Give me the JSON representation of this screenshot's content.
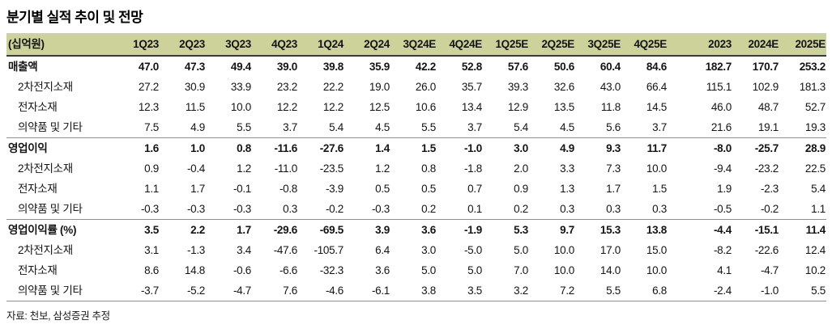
{
  "title": "분기별 실적 추이 및 전망",
  "footer": "자료: 천보, 삼성증권 추정",
  "colors": {
    "header_bg": "#ccd29a",
    "header_border": "#3a3a3a",
    "section_line": "#909090"
  },
  "table": {
    "unit_label": "(십억원)",
    "columns": [
      "1Q23",
      "2Q23",
      "3Q23",
      "4Q23",
      "1Q24",
      "2Q24",
      "3Q24E",
      "4Q24E",
      "1Q25E",
      "2Q25E",
      "3Q25E",
      "4Q25E",
      "2023",
      "2024E",
      "2025E"
    ],
    "gap_after_column_index": 12,
    "rows": [
      {
        "label": "매출액",
        "bold": true,
        "indent": false,
        "section_start": false,
        "values": [
          "47.0",
          "47.3",
          "49.4",
          "39.0",
          "39.8",
          "35.9",
          "42.2",
          "52.8",
          "57.6",
          "50.6",
          "60.4",
          "84.6",
          "182.7",
          "170.7",
          "253.2"
        ]
      },
      {
        "label": "2차전지소재",
        "bold": false,
        "indent": true,
        "section_start": false,
        "values": [
          "27.2",
          "30.9",
          "33.9",
          "23.2",
          "22.2",
          "19.0",
          "26.0",
          "35.7",
          "39.3",
          "32.6",
          "43.0",
          "66.4",
          "115.1",
          "102.9",
          "181.3"
        ]
      },
      {
        "label": "전자소재",
        "bold": false,
        "indent": true,
        "section_start": false,
        "values": [
          "12.3",
          "11.5",
          "10.0",
          "12.2",
          "12.2",
          "12.5",
          "10.6",
          "13.4",
          "12.9",
          "13.5",
          "11.8",
          "14.5",
          "46.0",
          "48.7",
          "52.7"
        ]
      },
      {
        "label": "의약품 및 기타",
        "bold": false,
        "indent": true,
        "section_start": false,
        "values": [
          "7.5",
          "4.9",
          "5.5",
          "3.7",
          "5.4",
          "4.5",
          "5.5",
          "3.7",
          "5.4",
          "4.5",
          "5.6",
          "3.7",
          "21.6",
          "19.1",
          "19.3"
        ]
      },
      {
        "label": "영업이익",
        "bold": true,
        "indent": false,
        "section_start": true,
        "values": [
          "1.6",
          "1.0",
          "0.8",
          "-11.6",
          "-27.6",
          "1.4",
          "1.5",
          "-1.0",
          "3.0",
          "4.9",
          "9.3",
          "11.7",
          "-8.0",
          "-25.7",
          "28.9"
        ]
      },
      {
        "label": "2차전지소재",
        "bold": false,
        "indent": true,
        "section_start": false,
        "values": [
          "0.9",
          "-0.4",
          "1.2",
          "-11.0",
          "-23.5",
          "1.2",
          "0.8",
          "-1.8",
          "2.0",
          "3.3",
          "7.3",
          "10.0",
          "-9.4",
          "-23.2",
          "22.5"
        ]
      },
      {
        "label": "전자소재",
        "bold": false,
        "indent": true,
        "section_start": false,
        "values": [
          "1.1",
          "1.7",
          "-0.1",
          "-0.8",
          "-3.9",
          "0.5",
          "0.5",
          "0.7",
          "0.9",
          "1.3",
          "1.7",
          "1.5",
          "1.9",
          "-2.3",
          "5.4"
        ]
      },
      {
        "label": "의약품 및 기타",
        "bold": false,
        "indent": true,
        "section_start": false,
        "values": [
          "-0.3",
          "-0.3",
          "-0.3",
          "0.3",
          "-0.2",
          "-0.3",
          "0.2",
          "0.1",
          "0.2",
          "0.3",
          "0.3",
          "0.3",
          "-0.5",
          "-0.2",
          "1.1"
        ]
      },
      {
        "label": "영업이익률 (%)",
        "bold": true,
        "indent": false,
        "section_start": true,
        "values": [
          "3.5",
          "2.2",
          "1.7",
          "-29.6",
          "-69.5",
          "3.9",
          "3.6",
          "-1.9",
          "5.3",
          "9.7",
          "15.3",
          "13.8",
          "-4.4",
          "-15.1",
          "11.4"
        ]
      },
      {
        "label": "2차전지소재",
        "bold": false,
        "indent": true,
        "section_start": false,
        "values": [
          "3.1",
          "-1.3",
          "3.4",
          "-47.6",
          "-105.7",
          "6.4",
          "3.0",
          "-5.0",
          "5.0",
          "10.0",
          "17.0",
          "15.0",
          "-8.2",
          "-22.6",
          "12.4"
        ]
      },
      {
        "label": "전자소재",
        "bold": false,
        "indent": true,
        "section_start": false,
        "values": [
          "8.6",
          "14.8",
          "-0.6",
          "-6.6",
          "-32.3",
          "3.6",
          "5.0",
          "5.0",
          "7.0",
          "10.0",
          "14.0",
          "10.0",
          "4.1",
          "-4.7",
          "10.2"
        ]
      },
      {
        "label": "의약품 및 기타",
        "bold": false,
        "indent": true,
        "section_start": false,
        "values": [
          "-3.7",
          "-5.2",
          "-4.7",
          "7.6",
          "-4.6",
          "-6.1",
          "3.8",
          "3.5",
          "3.2",
          "7.2",
          "5.5",
          "6.8",
          "-2.4",
          "-1.0",
          "5.5"
        ]
      }
    ]
  }
}
